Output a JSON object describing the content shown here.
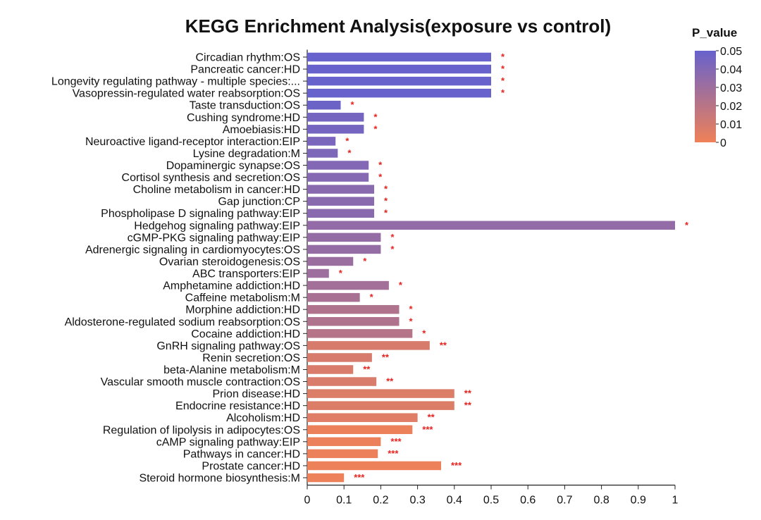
{
  "chart_data": {
    "type": "bar",
    "orientation": "horizontal",
    "title": "KEGG Enrichment Analysis(exposure vs control)",
    "xlabel": "",
    "ylabel": "",
    "xlim": [
      0,
      1
    ],
    "x_ticks": [
      "0",
      "0.1",
      "0.2",
      "0.3",
      "0.4",
      "0.5",
      "0.6",
      "0.7",
      "0.8",
      "0.9",
      "1"
    ],
    "grid": false,
    "colorbar": {
      "title": "P_value",
      "range": [
        0,
        0.05
      ],
      "ticks": [
        "0.05",
        "0.04",
        "0.03",
        "0.02",
        "0.01",
        "0"
      ],
      "color_low": "#ef8158",
      "color_high": "#6762cc",
      "placement": "top-right"
    },
    "significance_color": "#e8231f",
    "categories": [
      "Circadian rhythm:OS",
      "Pancreatic cancer:HD",
      "Longevity regulating pathway - multiple species:...",
      "Vasopressin-regulated water reabsorption:OS",
      "Taste transduction:OS",
      "Cushing syndrome:HD",
      "Amoebiasis:HD",
      "Neuroactive ligand-receptor interaction:EIP",
      "Lysine degradation:M",
      "Dopaminergic synapse:OS",
      "Cortisol synthesis and secretion:OS",
      "Choline metabolism in cancer:HD",
      "Gap junction:CP",
      "Phospholipase D signaling pathway:EIP",
      "Hedgehog signaling pathway:EIP",
      "cGMP-PKG signaling pathway:EIP",
      "Adrenergic signaling in cardiomyocytes:OS",
      "Ovarian steroidogenesis:OS",
      "ABC transporters:EIP",
      "Amphetamine addiction:HD",
      "Caffeine metabolism:M",
      "Morphine addiction:HD",
      "Aldosterone-regulated sodium reabsorption:OS",
      "Cocaine addiction:HD",
      "GnRH signaling pathway:OS",
      "Renin secretion:OS",
      "beta-Alanine metabolism:M",
      "Vascular smooth muscle contraction:OS",
      "Prion disease:HD",
      "Endocrine resistance:HD",
      "Alcoholism:HD",
      "Regulation of lipolysis in adipocytes:OS",
      "cAMP signaling pathway:EIP",
      "Pathways in cancer:HD",
      "Prostate cancer:HD",
      "Steroid hormone biosynthesis:M"
    ],
    "values": [
      0.5,
      0.5,
      0.5,
      0.5,
      0.091,
      0.154,
      0.154,
      0.077,
      0.083,
      0.167,
      0.167,
      0.182,
      0.182,
      0.182,
      1.0,
      0.2,
      0.2,
      0.125,
      0.059,
      0.222,
      0.143,
      0.25,
      0.25,
      0.286,
      0.333,
      0.176,
      0.125,
      0.188,
      0.4,
      0.4,
      0.3,
      0.286,
      0.2,
      0.192,
      0.364,
      0.1
    ],
    "p_values": [
      0.05,
      0.05,
      0.05,
      0.05,
      0.048,
      0.045,
      0.045,
      0.043,
      0.042,
      0.04,
      0.039,
      0.037,
      0.037,
      0.037,
      0.034,
      0.033,
      0.033,
      0.031,
      0.03,
      0.028,
      0.026,
      0.023,
      0.023,
      0.021,
      0.009,
      0.009,
      0.008,
      0.008,
      0.007,
      0.007,
      0.006,
      0.001,
      0.001,
      0.001,
      0.0008,
      0.0008
    ],
    "significance": [
      "*",
      "*",
      "*",
      "*",
      "*",
      "*",
      "*",
      "*",
      "*",
      "*",
      "*",
      "*",
      "*",
      "*",
      "*",
      "*",
      "*",
      "*",
      "*",
      "*",
      "*",
      "*",
      "*",
      "*",
      "**",
      "**",
      "**",
      "**",
      "**",
      "**",
      "**",
      "***",
      "***",
      "***",
      "***",
      "***"
    ]
  }
}
